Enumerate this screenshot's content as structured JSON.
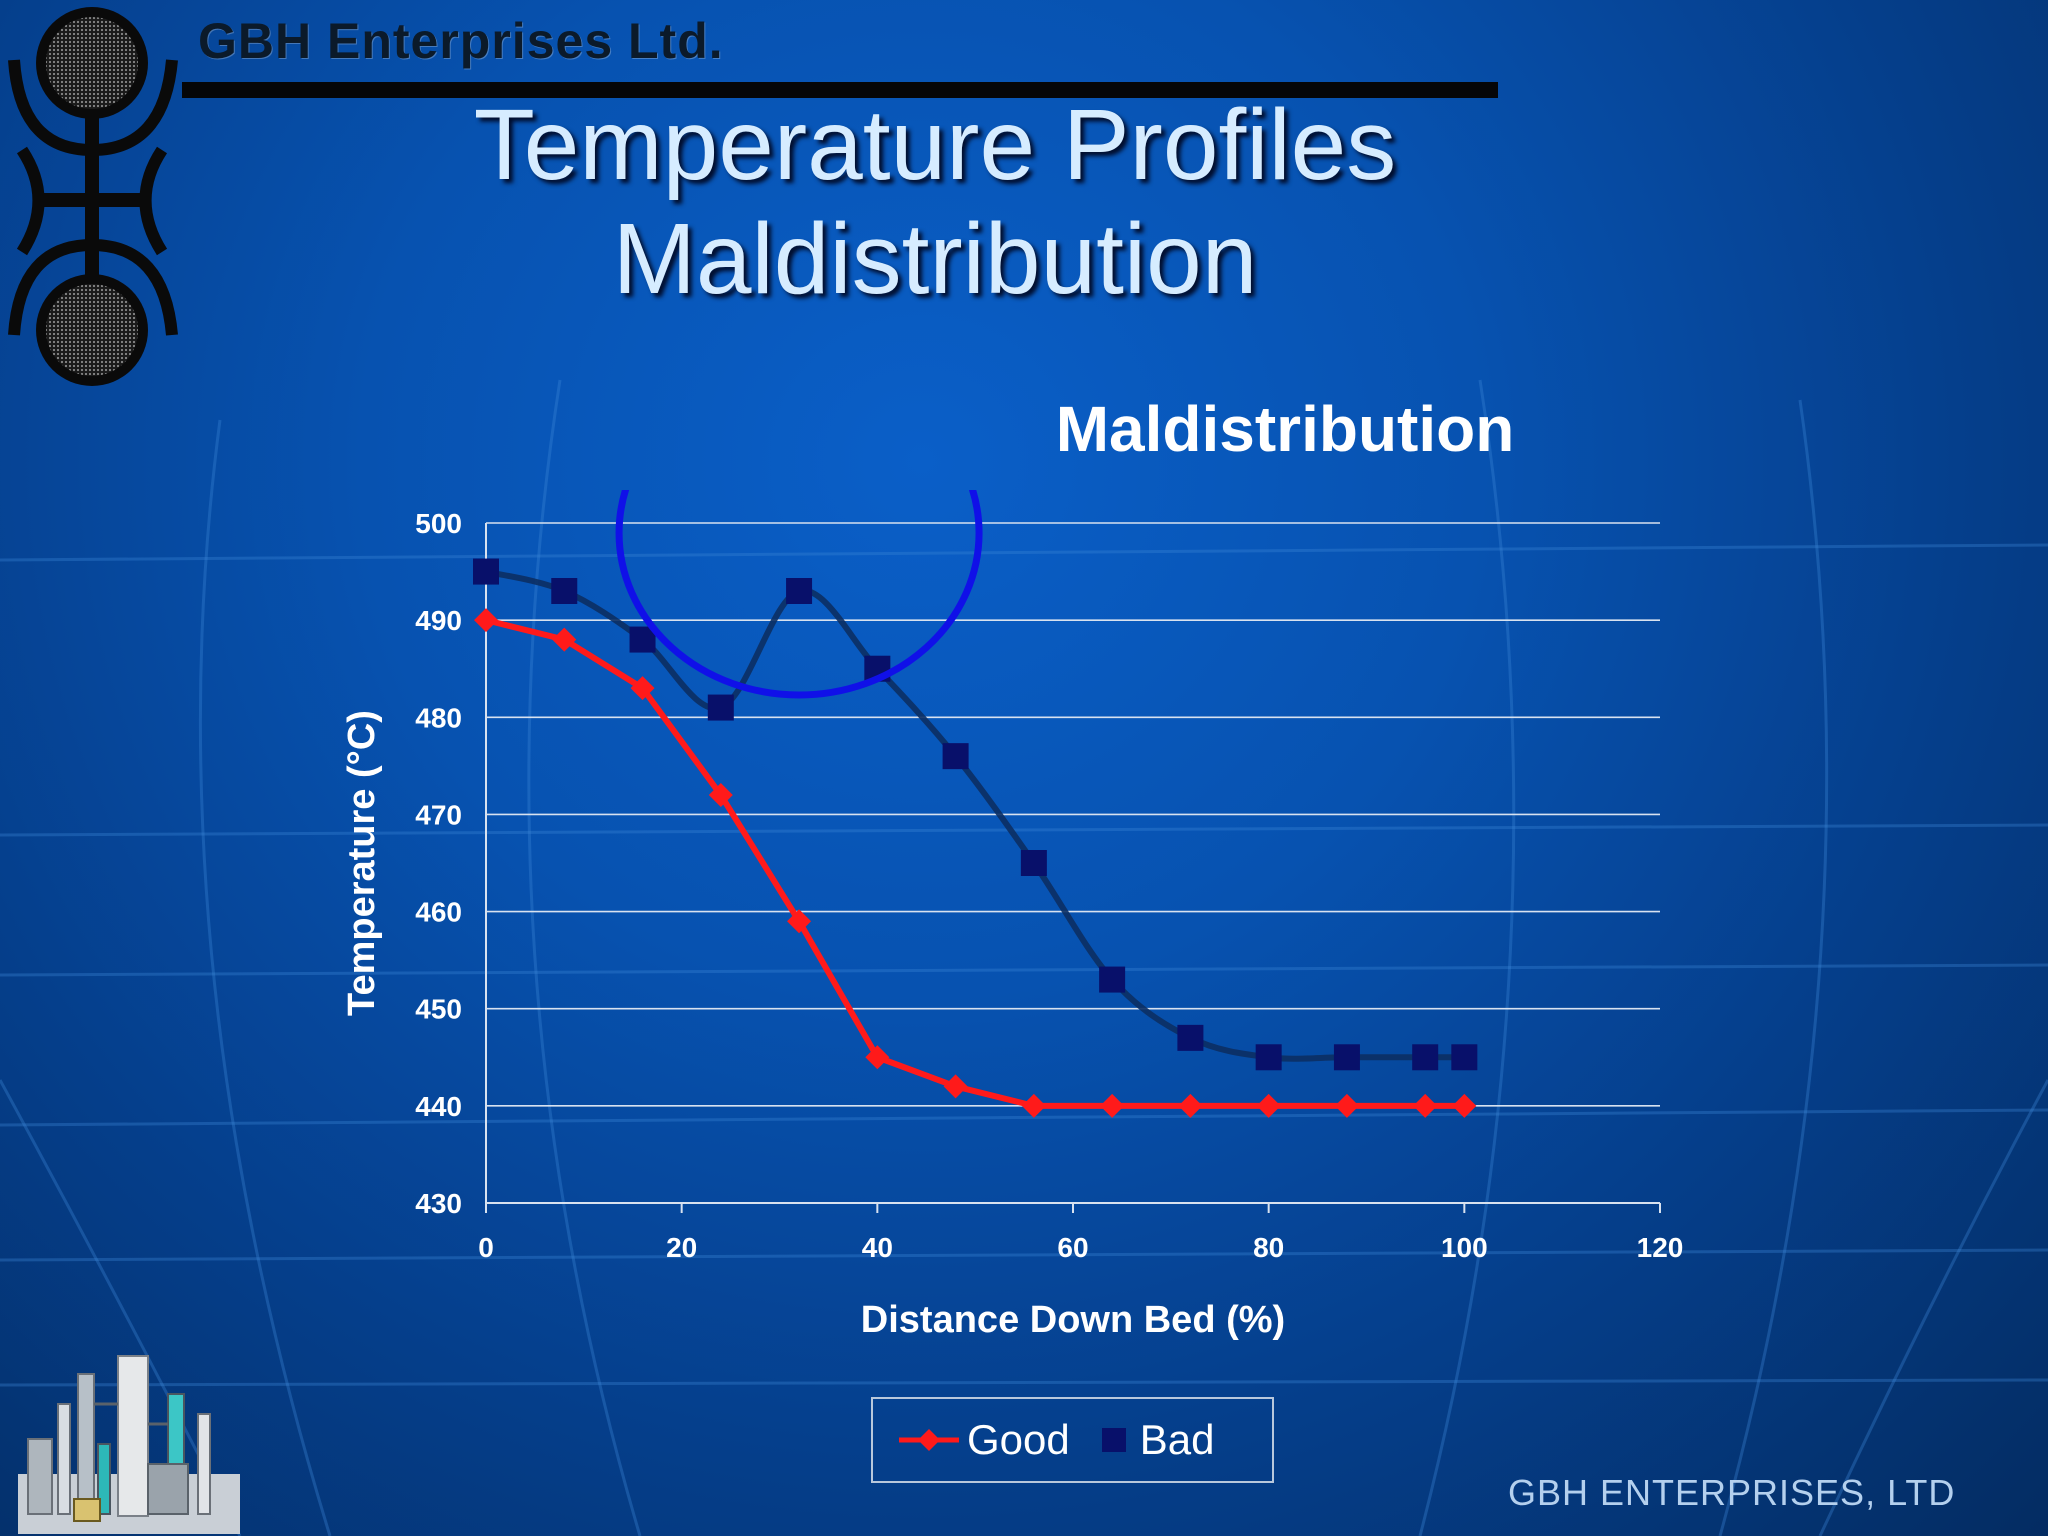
{
  "header": {
    "company": "GBH Enterprises Ltd.",
    "title_line1": "Temperature Profiles",
    "title_line2": "Maldistribution"
  },
  "footer": {
    "company": "GBH ENTERPRISES, LTD"
  },
  "legend": {
    "good_label": "Good",
    "bad_label": "Bad"
  },
  "icons": {
    "logo": "gbh-logo-icon",
    "plant": "plant-illustration-icon"
  },
  "colors": {
    "good_series": "#ff1a1a",
    "bad_series": "#08106a",
    "highlight_circle": "#1010e8",
    "gridline": "#d8e2f0",
    "axis_text": "#ffffff"
  },
  "chart_data": {
    "type": "line",
    "title": "Maldistribution",
    "xlabel": "Distance Down Bed (%)",
    "ylabel": "Temperature (°C)",
    "xlim": [
      0,
      120
    ],
    "ylim": [
      430,
      500
    ],
    "xticks": [
      0,
      20,
      40,
      60,
      80,
      100,
      120
    ],
    "yticks": [
      430,
      440,
      450,
      460,
      470,
      480,
      490,
      500
    ],
    "grid": "horizontal",
    "legend_position": "bottom",
    "series": [
      {
        "name": "Good",
        "marker": "diamond",
        "x": [
          0,
          8,
          16,
          24,
          32,
          40,
          48,
          56,
          64,
          72,
          80,
          88,
          96,
          100
        ],
        "y": [
          490,
          488,
          483,
          472,
          459,
          445,
          442,
          440,
          440,
          440,
          440,
          440,
          440,
          440
        ]
      },
      {
        "name": "Bad",
        "marker": "square",
        "smooth": true,
        "x": [
          0,
          8,
          16,
          24,
          32,
          40,
          48,
          56,
          64,
          72,
          80,
          88,
          96,
          100
        ],
        "y": [
          495,
          493,
          488,
          481,
          493,
          485,
          476,
          465,
          453,
          447,
          445,
          445,
          445,
          445
        ]
      }
    ],
    "annotations": [
      {
        "type": "circle",
        "center": [
          32,
          500
        ],
        "note": "highlighted region around the bad-profile bump"
      }
    ]
  }
}
